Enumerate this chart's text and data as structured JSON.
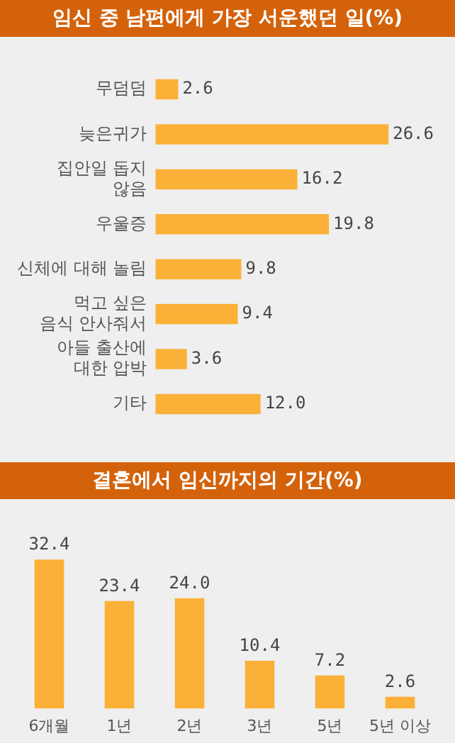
{
  "chart_data": [
    {
      "type": "bar",
      "title": "임신 중 남편에게 가장 서운했던 일(%)",
      "orientation": "horizontal",
      "categories": [
        "무덤덤",
        "늦은귀가",
        "집안일 돕지\n않음",
        "우울증",
        "신체에 대해 놀림",
        "먹고 싶은\n음식 안사줘서",
        "아들 출산에\n대한 압박",
        "기타"
      ],
      "values": [
        2.6,
        26.6,
        16.2,
        19.8,
        9.8,
        9.4,
        3.6,
        12.0
      ],
      "value_labels": [
        "2.6",
        "26.6",
        "16.2",
        "19.8",
        "9.8",
        "9.4",
        "3.6",
        "12.0"
      ],
      "color": "#fbb137"
    },
    {
      "type": "bar",
      "title": "결혼에서 임신까지의 기간(%)",
      "categories": [
        "6개월",
        "1년",
        "2년",
        "3년",
        "5년",
        "5년 이상"
      ],
      "values": [
        32.4,
        23.4,
        24.0,
        10.4,
        7.2,
        2.6
      ],
      "value_labels": [
        "32.4",
        "23.4",
        "24.0",
        "10.4",
        "7.2",
        "2.6"
      ],
      "color": "#fbb137"
    }
  ]
}
